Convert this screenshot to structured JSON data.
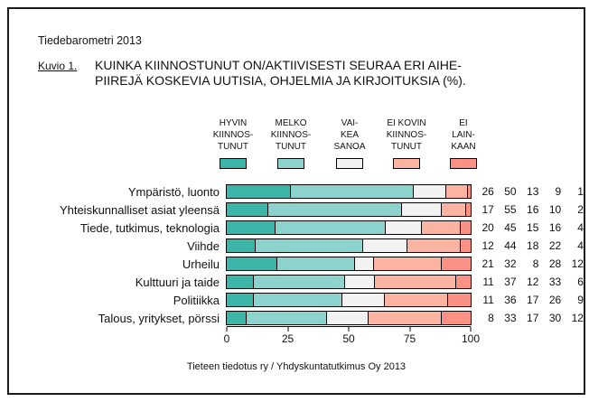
{
  "header": {
    "document_title": "Tiedebarometri 2013",
    "figure_label": "Kuvio 1.",
    "title_line1": "KUINKA KIINNOSTUNUT ON/AKTIIVISESTI SEURAA ERI AIHE-",
    "title_line2": "PIIREJÄ KOSKEVIA UUTISIA, OHJELMIA JA KIRJOITUKSIA (%)."
  },
  "legend": {
    "items": [
      {
        "label_lines": [
          "HYVIN",
          "KIINNOS-",
          "TUNUT"
        ],
        "color": "#3cb4a8"
      },
      {
        "label_lines": [
          "MELKO",
          "KIINNOS-",
          "TUNUT"
        ],
        "color": "#8dd3cd"
      },
      {
        "label_lines": [
          "VAI-",
          "KEA",
          "SANOA"
        ],
        "color": "#f2f2f2"
      },
      {
        "label_lines": [
          "EI KOVIN",
          "KIINNOS-",
          "TUNUT"
        ],
        "color": "#fcb4a2"
      },
      {
        "label_lines": [
          "EI",
          "LAIN-",
          "KAAN"
        ],
        "color": "#fb9184"
      }
    ]
  },
  "chart_data": {
    "type": "bar",
    "orientation": "horizontal",
    "stacked": true,
    "title": "KUINKA KIINNOSTUNUT ON/AKTIIVISESTI SEURAA ERI AIHEPIIREJÄ KOSKEVIA UUTISIA, OHJELMIA JA KIRJOITUKSIA (%)",
    "categories": [
      "Ympäristö, luonto",
      "Yhteiskunnalliset asiat yleensä",
      "Tiede, tutkimus, teknologia",
      "Viihde",
      "Urheilu",
      "Kulttuuri ja taide",
      "Politiikka",
      "Talous, yritykset, pörssi"
    ],
    "series": [
      {
        "name": "HYVIN KIINNOSTUNUT",
        "color": "#3cb4a8",
        "values": [
          26,
          17,
          20,
          12,
          21,
          11,
          11,
          8
        ]
      },
      {
        "name": "MELKO KIINNOSTUNUT",
        "color": "#8dd3cd",
        "values": [
          50,
          55,
          45,
          44,
          32,
          37,
          36,
          33
        ]
      },
      {
        "name": "VAIKEA SANOA",
        "color": "#f2f2f2",
        "values": [
          13,
          16,
          15,
          18,
          8,
          12,
          17,
          17
        ]
      },
      {
        "name": "EI KOVIN KIINNOSTUNUT",
        "color": "#fcb4a2",
        "values": [
          9,
          10,
          16,
          22,
          28,
          33,
          26,
          30
        ]
      },
      {
        "name": "EI LAINKAAN",
        "color": "#fb9184",
        "values": [
          1,
          2,
          4,
          4,
          12,
          6,
          9,
          12
        ]
      }
    ],
    "x_axis": {
      "range": [
        0,
        100
      ],
      "ticks": [
        0,
        25,
        50,
        75,
        100
      ]
    },
    "value_labels_shown": true,
    "legend_position": "top",
    "grid": false
  },
  "footer": {
    "source": "Tieteen tiedotus ry / Yhdyskuntatutkimus Oy 2013"
  }
}
